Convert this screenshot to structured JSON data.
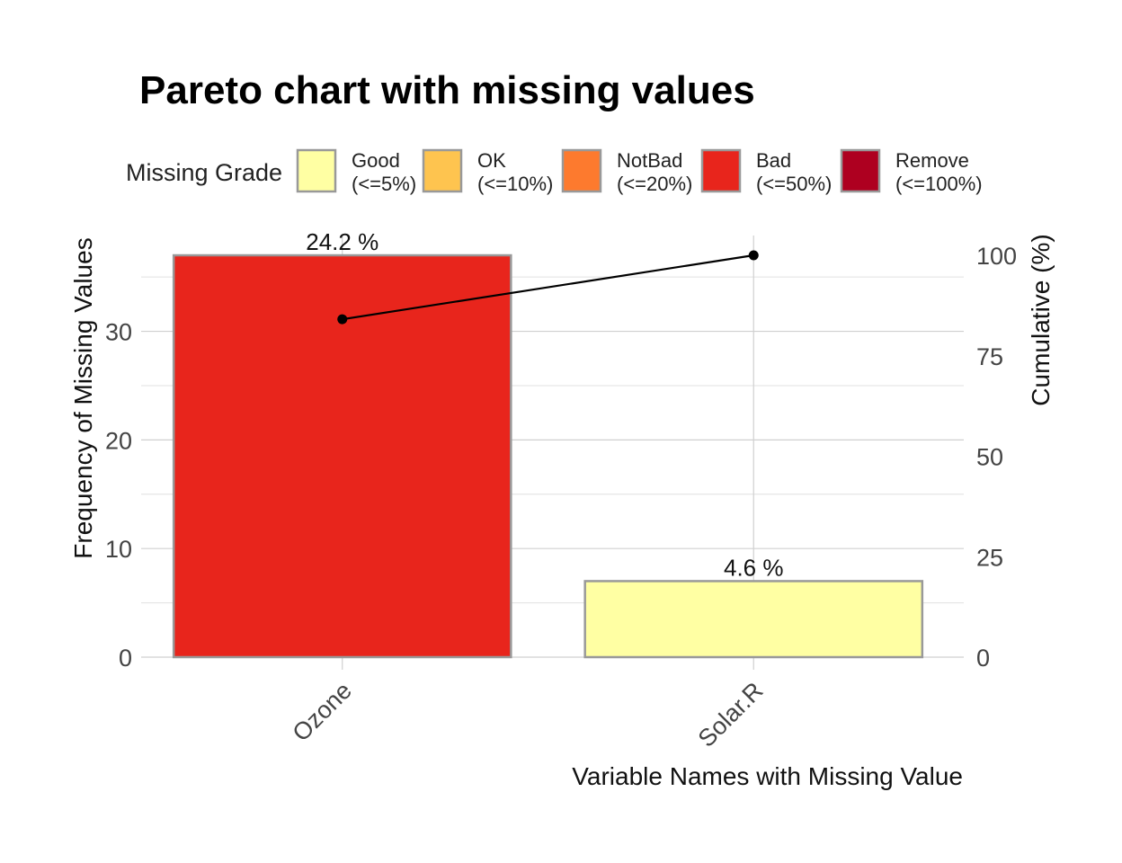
{
  "chart_data": {
    "type": "bar",
    "title": "Pareto chart with missing values",
    "xlabel": "Variable Names with Missing Value",
    "ylabel": "Frequency of Missing Values",
    "y2label": "Cumulative (%)",
    "categories": [
      "Ozone",
      "Solar.R"
    ],
    "values": [
      37,
      7
    ],
    "bar_labels": [
      "24.2 %",
      "4.6 %"
    ],
    "bar_grades": [
      "Bad",
      "Good"
    ],
    "cumulative": [
      84.09,
      100
    ],
    "ylim": [
      0,
      37
    ],
    "yticks": [
      0,
      10,
      20,
      30
    ],
    "y2lim": [
      0,
      100
    ],
    "y2ticks": [
      0,
      25,
      50,
      75,
      100
    ],
    "grid": true,
    "legend_position": "top",
    "legend": {
      "title": "Missing Grade",
      "items": [
        {
          "grade": "Good",
          "range": "(<=5%)",
          "color": "#FFFFA3"
        },
        {
          "grade": "OK",
          "range": "(<=10%)",
          "color": "#FEC44F"
        },
        {
          "grade": "NotBad",
          "range": "(<=20%)",
          "color": "#FD7A2E"
        },
        {
          "grade": "Bad",
          "range": "(<=50%)",
          "color": "#E8251C"
        },
        {
          "grade": "Remove",
          "range": "(<=100%)",
          "color": "#AE0020"
        }
      ]
    },
    "colors": {
      "bar_border": "#999999",
      "line": "#000000"
    }
  }
}
